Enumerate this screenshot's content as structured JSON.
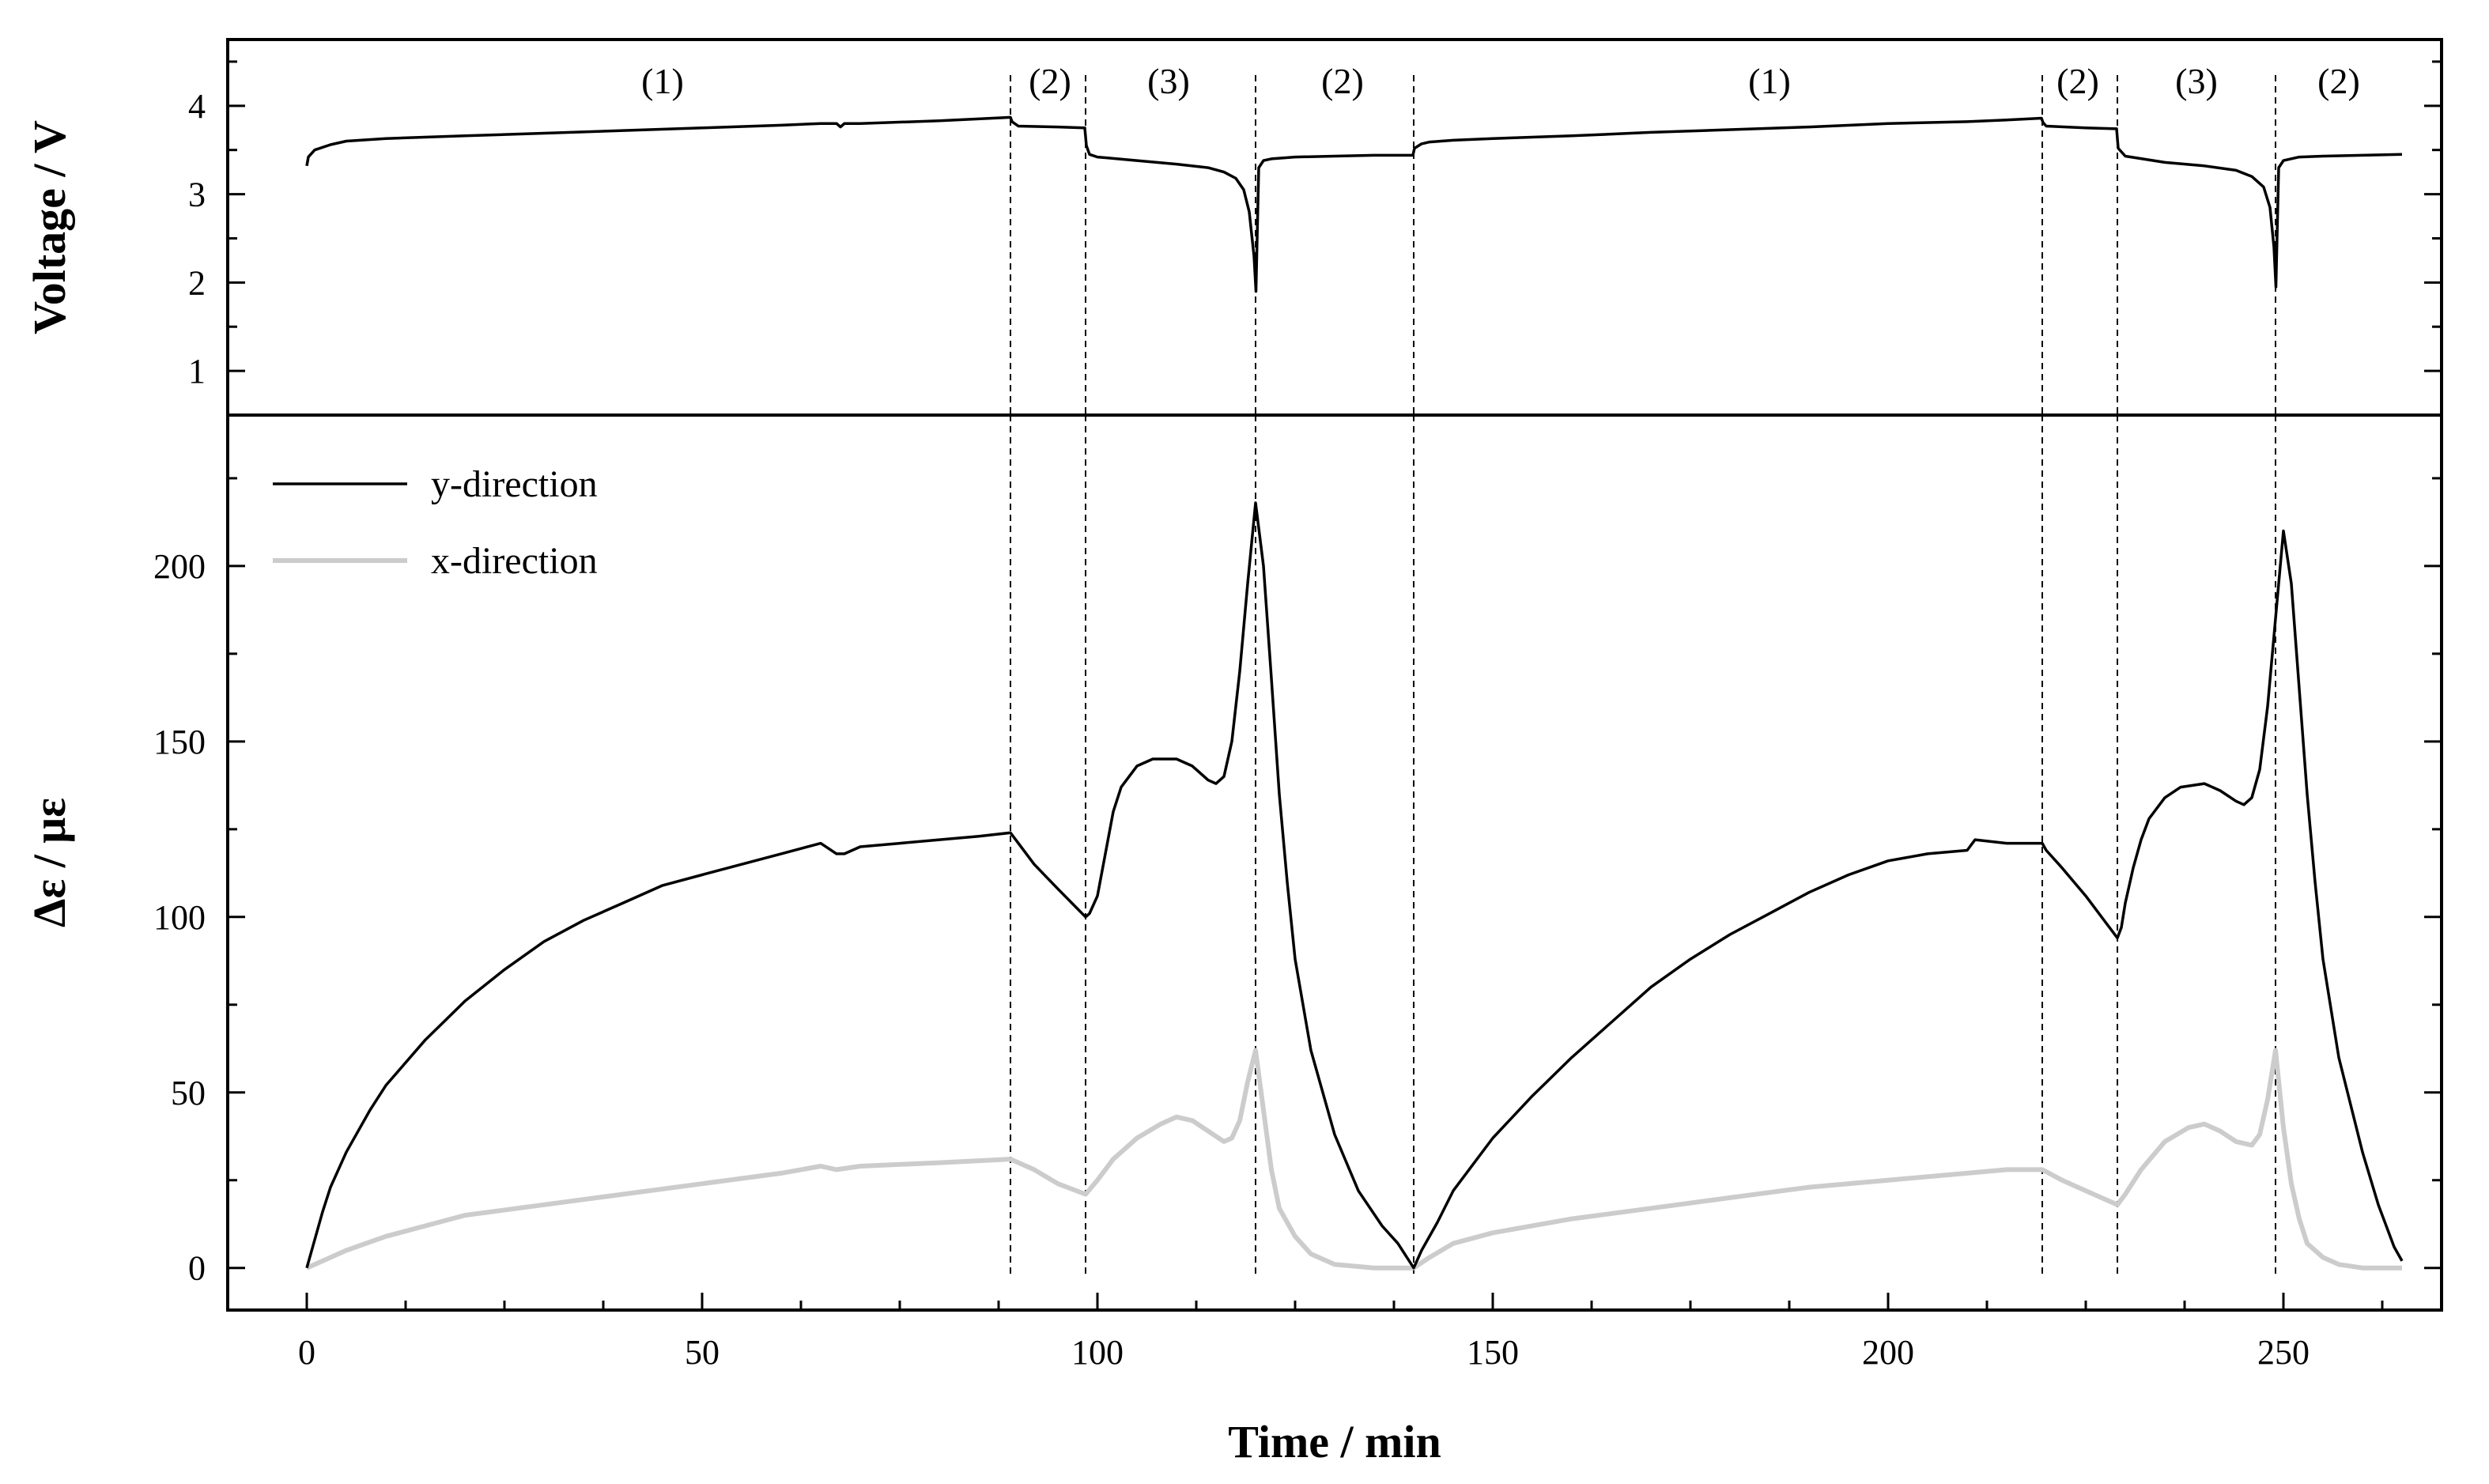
{
  "chart_data": [
    {
      "id": "voltage",
      "type": "line",
      "ylabel": "Voltage / V",
      "xlim": [
        -10,
        270
      ],
      "ylim": [
        0.5,
        4.75
      ],
      "yticks": [
        1,
        2,
        3,
        4
      ],
      "ytick_labels": [
        "1",
        "2",
        "3",
        "4"
      ],
      "phase_boundaries": [
        89,
        98.5,
        120,
        140,
        219.5,
        229,
        249
      ],
      "phase_labels": [
        {
          "x": 45,
          "text": "(1)"
        },
        {
          "x": 94,
          "text": "(2)"
        },
        {
          "x": 109,
          "text": "(3)"
        },
        {
          "x": 131,
          "text": "(2)"
        },
        {
          "x": 185,
          "text": "(1)"
        },
        {
          "x": 224,
          "text": "(2)"
        },
        {
          "x": 239,
          "text": "(3)"
        },
        {
          "x": 257,
          "text": "(2)"
        }
      ],
      "series": [
        {
          "name": "Voltage",
          "color": "#000000",
          "x": [
            0,
            0.2,
            1,
            3,
            5,
            10,
            20,
            30,
            40,
            50,
            60,
            65,
            67,
            67.5,
            68,
            70,
            80,
            89,
            89.2,
            90,
            95,
            98.4,
            98.6,
            99,
            100,
            105,
            110,
            114,
            116,
            117.5,
            118.5,
            119.2,
            119.8,
            120.05,
            120.4,
            121,
            122,
            125,
            130,
            135,
            139.9,
            140.1,
            141,
            142,
            145,
            150,
            160,
            170,
            180,
            190,
            200,
            210,
            215,
            219.4,
            219.6,
            220,
            225,
            228.9,
            229.1,
            230,
            235,
            240,
            244,
            246,
            247.5,
            248.3,
            248.8,
            249.05,
            249.4,
            250,
            252,
            255,
            260,
            265
          ],
          "y": [
            3.32,
            3.42,
            3.5,
            3.56,
            3.6,
            3.63,
            3.66,
            3.69,
            3.72,
            3.75,
            3.78,
            3.8,
            3.8,
            3.76,
            3.8,
            3.8,
            3.83,
            3.87,
            3.82,
            3.77,
            3.76,
            3.75,
            3.55,
            3.45,
            3.42,
            3.38,
            3.34,
            3.3,
            3.25,
            3.18,
            3.05,
            2.8,
            2.3,
            1.9,
            3.3,
            3.38,
            3.4,
            3.42,
            3.43,
            3.44,
            3.44,
            3.52,
            3.57,
            3.59,
            3.61,
            3.63,
            3.66,
            3.7,
            3.73,
            3.76,
            3.8,
            3.82,
            3.84,
            3.86,
            3.81,
            3.77,
            3.75,
            3.74,
            3.52,
            3.43,
            3.36,
            3.32,
            3.27,
            3.2,
            3.08,
            2.85,
            2.4,
            1.95,
            3.3,
            3.38,
            3.42,
            3.43,
            3.44,
            3.45
          ]
        }
      ]
    },
    {
      "id": "strain",
      "type": "line",
      "xlabel": "Time / min",
      "ylabel": "Δε / με",
      "xlim": [
        -10,
        270
      ],
      "ylim": [
        -12,
        243
      ],
      "xticks": [
        0,
        50,
        100,
        150,
        200,
        250
      ],
      "xtick_labels": [
        "0",
        "50",
        "100",
        "150",
        "200",
        "250"
      ],
      "yticks": [
        0,
        50,
        100,
        150,
        200
      ],
      "ytick_labels": [
        "0",
        "50",
        "100",
        "150",
        "200"
      ],
      "phase_boundaries": [
        89,
        98.5,
        120,
        140,
        219.5,
        229,
        249
      ],
      "legend": {
        "position": "top-left",
        "entries": [
          "y-direction",
          "x-direction"
        ]
      },
      "series": [
        {
          "name": "y-direction",
          "color": "#000000",
          "x": [
            0,
            1,
            2,
            3,
            5,
            8,
            10,
            15,
            20,
            25,
            30,
            35,
            40,
            45,
            50,
            55,
            60,
            65,
            67,
            68,
            70,
            75,
            80,
            85,
            89,
            90,
            92,
            95,
            98.5,
            99,
            100,
            101,
            102,
            103,
            105,
            107,
            110,
            112,
            114,
            115,
            116,
            117,
            118,
            119,
            120,
            121,
            122,
            123,
            124,
            125,
            127,
            130,
            133,
            136,
            138,
            140,
            141,
            143,
            145,
            150,
            155,
            160,
            165,
            170,
            175,
            180,
            185,
            190,
            195,
            200,
            205,
            210,
            211,
            215,
            219.5,
            220,
            222,
            225,
            229,
            229.5,
            230,
            231,
            232,
            233,
            235,
            237,
            240,
            242,
            244,
            245,
            246,
            247,
            248,
            249,
            250,
            251,
            252,
            253,
            254,
            255,
            257,
            260,
            262,
            264,
            265
          ],
          "y": [
            0,
            8,
            16,
            23,
            33,
            45,
            52,
            65,
            76,
            85,
            93,
            99,
            104,
            109,
            112,
            115,
            118,
            121,
            118,
            118,
            120,
            121,
            122,
            123,
            124,
            121,
            115,
            108,
            100,
            101,
            106,
            118,
            130,
            137,
            143,
            145,
            145,
            143,
            139,
            138,
            140,
            150,
            170,
            195,
            218,
            200,
            168,
            135,
            110,
            88,
            62,
            38,
            22,
            12,
            7,
            0,
            5,
            13,
            22,
            37,
            49,
            60,
            70,
            80,
            88,
            95,
            101,
            107,
            112,
            116,
            118,
            119,
            122,
            121,
            121,
            119,
            114,
            106,
            94,
            97,
            104,
            114,
            122,
            128,
            134,
            137,
            138,
            136,
            133,
            132,
            134,
            142,
            160,
            185,
            210,
            195,
            165,
            135,
            110,
            88,
            60,
            33,
            18,
            6,
            2
          ]
        },
        {
          "name": "x-direction",
          "color": "#cccccc",
          "x": [
            0,
            2,
            5,
            10,
            15,
            20,
            30,
            40,
            50,
            60,
            65,
            67,
            70,
            80,
            89,
            92,
            95,
            98.5,
            100,
            102,
            105,
            108,
            110,
            112,
            114,
            116,
            117,
            118,
            119,
            120,
            121,
            122,
            123,
            125,
            127,
            130,
            135,
            140,
            142,
            145,
            150,
            160,
            170,
            180,
            190,
            200,
            210,
            215,
            219.5,
            222,
            225,
            229,
            230,
            232,
            235,
            238,
            240,
            242,
            244,
            246,
            247,
            248,
            249,
            250,
            251,
            252,
            253,
            255,
            257,
            260,
            265
          ],
          "y": [
            0,
            2,
            5,
            9,
            12,
            15,
            18,
            21,
            24,
            27,
            29,
            28,
            29,
            30,
            31,
            28,
            24,
            21,
            25,
            31,
            37,
            41,
            43,
            42,
            39,
            36,
            37,
            42,
            53,
            62,
            45,
            28,
            17,
            9,
            4,
            1,
            0,
            0,
            3,
            7,
            10,
            14,
            17,
            20,
            23,
            25,
            27,
            28,
            28,
            25,
            22,
            18,
            21,
            28,
            36,
            40,
            41,
            39,
            36,
            35,
            38,
            48,
            62,
            40,
            24,
            14,
            7,
            3,
            1,
            0,
            0
          ]
        }
      ]
    }
  ]
}
